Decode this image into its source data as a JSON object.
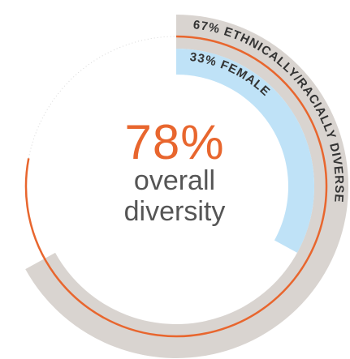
{
  "chart_data": {
    "type": "radial-progress",
    "center": {
      "value": "78%",
      "label_line1": "overall",
      "label_line2": "diversity"
    },
    "series": [
      {
        "label": "67% ETHNICALLY/RACIALLY DIVERSE",
        "value": 67,
        "color": "#d9d4d0"
      },
      {
        "label": "33% FEMALE",
        "value": 33,
        "color": "#bfe2f7"
      },
      {
        "label": "78%",
        "value": 78,
        "color": "#e8662e"
      }
    ]
  }
}
